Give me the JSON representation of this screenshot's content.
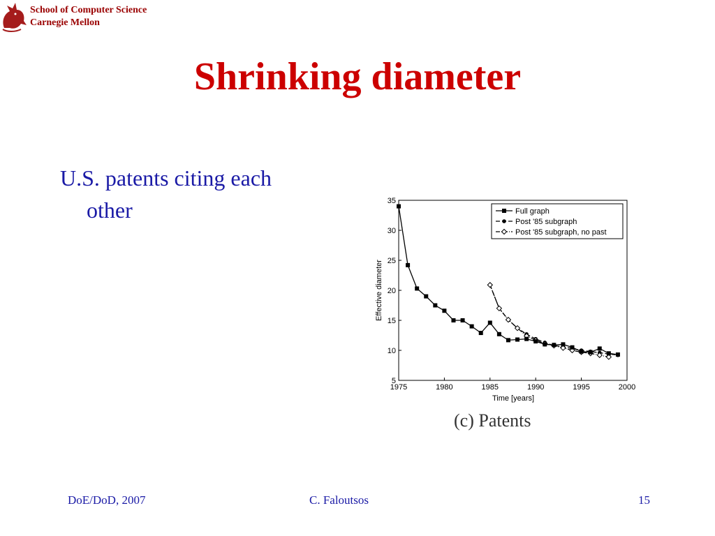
{
  "header": {
    "org_line1": "School of Computer Science",
    "org_line2": "Carnegie Mellon"
  },
  "slide": {
    "title": "Shrinking diameter",
    "bullet_line1": "U.S. patents citing each",
    "bullet_line2": "other",
    "caption": "(c) Patents"
  },
  "footer": {
    "left": "DoE/DoD, 2007",
    "center": "C. Faloutsos",
    "right": "15"
  },
  "chart_data": {
    "type": "line",
    "xlabel": "Time [years]",
    "ylabel": "Effective diameter",
    "xlim": [
      1975,
      2000
    ],
    "ylim": [
      5,
      35
    ],
    "xticks": [
      1975,
      1980,
      1985,
      1990,
      1995,
      2000
    ],
    "yticks": [
      5,
      10,
      15,
      20,
      25,
      30,
      35
    ],
    "legend_position": "top-right",
    "series": [
      {
        "name": "Full graph",
        "marker": "square",
        "linestyle": "solid",
        "x": [
          1975,
          1976,
          1977,
          1978,
          1979,
          1980,
          1981,
          1982,
          1983,
          1984,
          1985,
          1986,
          1987,
          1988,
          1989,
          1990,
          1991,
          1992,
          1993,
          1994,
          1995,
          1996,
          1997,
          1998,
          1999
        ],
        "y": [
          34.0,
          24.2,
          20.3,
          19.0,
          17.5,
          16.6,
          15.0,
          15.0,
          14.0,
          12.9,
          14.6,
          12.7,
          11.7,
          11.8,
          11.9,
          11.5,
          11.0,
          10.9,
          11.0,
          10.5,
          9.8,
          9.7,
          10.3,
          9.5,
          9.3
        ]
      },
      {
        "name": "Post '85 subgraph",
        "marker": "circle",
        "linestyle": "dashed",
        "x": [
          1985,
          1986,
          1987,
          1988,
          1989,
          1990,
          1991,
          1992,
          1993,
          1994,
          1995,
          1996,
          1997,
          1998,
          1999
        ],
        "y": [
          20.9,
          17.0,
          15.1,
          13.7,
          12.7,
          11.9,
          11.3,
          10.8,
          10.6,
          10.3,
          10.0,
          9.8,
          9.6,
          9.4,
          9.2
        ]
      },
      {
        "name": "Post '85 subgraph, no past",
        "marker": "diamond",
        "linestyle": "dashdot",
        "x": [
          1985,
          1986,
          1987,
          1988,
          1989,
          1990,
          1991,
          1992,
          1993,
          1994,
          1995,
          1996,
          1997,
          1998
        ],
        "y": [
          20.9,
          17.0,
          15.1,
          13.7,
          12.4,
          11.7,
          11.1,
          10.8,
          10.4,
          10.0,
          9.7,
          9.5,
          9.2,
          8.9
        ]
      }
    ]
  }
}
